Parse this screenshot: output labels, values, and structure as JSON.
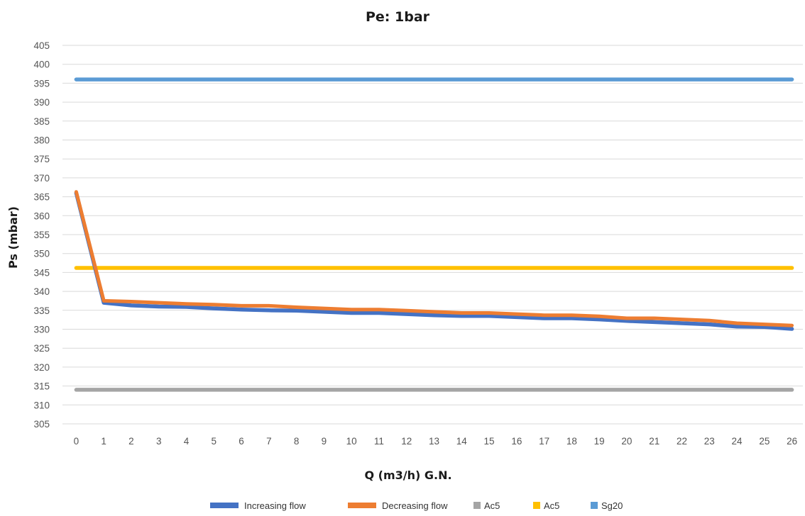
{
  "chart_data": {
    "type": "line",
    "title": "Pe: 1bar",
    "xlabel": "Q (m3/h) G.N.",
    "ylabel": "Ps (mbar)",
    "ylim": [
      305,
      405
    ],
    "ytick_step": 5,
    "grid": true,
    "legend_position": "bottom",
    "categories": [
      "0",
      "1",
      "2",
      "3",
      "4",
      "5",
      "6",
      "7",
      "8",
      "9",
      "10",
      "11",
      "12",
      "13",
      "14",
      "15",
      "16",
      "17",
      "18",
      "19",
      "20",
      "21",
      "22",
      "23",
      "24",
      "25",
      "26"
    ],
    "series": [
      {
        "name": "Increasing flow",
        "color": "#4472C4",
        "legend_marker": "line",
        "values": [
          366,
          337,
          336.3,
          336,
          335.9,
          335.5,
          335.2,
          335,
          334.9,
          334.6,
          334.3,
          334.3,
          334,
          333.7,
          333.5,
          333.5,
          333.2,
          332.9,
          332.9,
          332.6,
          332.2,
          331.9,
          331.6,
          331.3,
          330.7,
          330.6,
          330.1
        ]
      },
      {
        "name": "Decreasing  flow",
        "color": "#ED7D31",
        "legend_marker": "line",
        "values": [
          366.3,
          337.5,
          337.3,
          337,
          336.7,
          336.5,
          336.2,
          336.2,
          335.8,
          335.5,
          335.2,
          335.2,
          334.9,
          334.6,
          334.3,
          334.3,
          334,
          333.7,
          333.7,
          333.4,
          332.9,
          332.9,
          332.6,
          332.3,
          331.6,
          331.3,
          331
        ]
      },
      {
        "name": "Ac5",
        "color": "#A5A5A5",
        "legend_marker": "square",
        "values": [
          314,
          314,
          314,
          314,
          314,
          314,
          314,
          314,
          314,
          314,
          314,
          314,
          314,
          314,
          314,
          314,
          314,
          314,
          314,
          314,
          314,
          314,
          314,
          314,
          314,
          314,
          314
        ]
      },
      {
        "name": "Ac5",
        "color": "#FFC000",
        "legend_marker": "square",
        "values": [
          346.2,
          346.2,
          346.2,
          346.2,
          346.2,
          346.2,
          346.2,
          346.2,
          346.2,
          346.2,
          346.2,
          346.2,
          346.2,
          346.2,
          346.2,
          346.2,
          346.2,
          346.2,
          346.2,
          346.2,
          346.2,
          346.2,
          346.2,
          346.2,
          346.2,
          346.2,
          346.2
        ]
      },
      {
        "name": "Sg20",
        "color": "#5B9BD5",
        "legend_marker": "square",
        "values": [
          396,
          396,
          396,
          396,
          396,
          396,
          396,
          396,
          396,
          396,
          396,
          396,
          396,
          396,
          396,
          396,
          396,
          396,
          396,
          396,
          396,
          396,
          396,
          396,
          396,
          396,
          396
        ]
      }
    ]
  }
}
